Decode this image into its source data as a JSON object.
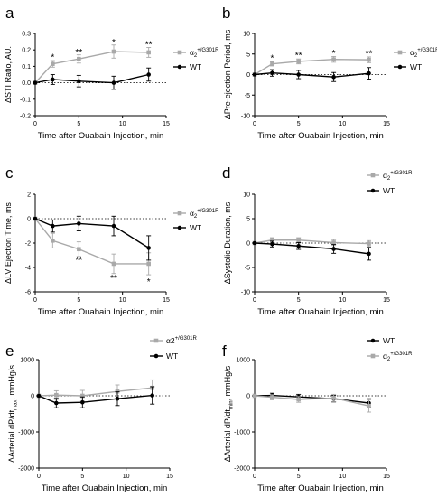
{
  "colors": {
    "wt": "#000000",
    "mut": "#a9a9a9",
    "axis": "#000000"
  },
  "chart_data": [
    {
      "type": "line",
      "panel_letter": "a",
      "ylabel": "ΔSTI Ratio, AU.",
      "xlabel": "Time after Ouabain Injection, min",
      "xlim": [
        0,
        15
      ],
      "ylim": [
        -0.2,
        0.3
      ],
      "x_ticks": [
        0,
        5,
        10,
        15
      ],
      "x_tick_labels": [
        "0",
        "5",
        "10",
        "15"
      ],
      "y_ticks": [
        -0.2,
        -0.1,
        0.0,
        0.1,
        0.2,
        0.3
      ],
      "y_tick_labels": [
        "-0.2",
        "-0.1",
        "0.0",
        "0.1",
        "0.2",
        "0.3"
      ],
      "zero_line": true,
      "legend_position": "right",
      "series": [
        {
          "name": "α2+/G301R",
          "legend_base": "α",
          "legend_sub": "2",
          "legend_sup": "+/G301R",
          "color": "mut",
          "marker": "square",
          "x": [
            0,
            2,
            5,
            9,
            13
          ],
          "y": [
            0,
            0.115,
            0.145,
            0.19,
            0.185
          ],
          "err": [
            0,
            0.02,
            0.025,
            0.04,
            0.03
          ]
        },
        {
          "name": "WT",
          "legend_base": "WT",
          "legend_sub": "",
          "legend_sup": "",
          "color": "wt",
          "marker": "circle",
          "x": [
            0,
            2,
            5,
            9,
            13
          ],
          "y": [
            0,
            0.02,
            0.01,
            0.0,
            0.05
          ],
          "err": [
            0,
            0.03,
            0.035,
            0.04,
            0.04
          ]
        }
      ],
      "annotations": [
        {
          "x": 2,
          "y": 0.155,
          "text": "*"
        },
        {
          "x": 5,
          "y": 0.185,
          "text": "**"
        },
        {
          "x": 9,
          "y": 0.245,
          "text": "*"
        },
        {
          "x": 13,
          "y": 0.23,
          "text": "**"
        }
      ]
    },
    {
      "type": "line",
      "panel_letter": "b",
      "ylabel": "ΔPre-ejection Period, ms",
      "xlabel": "Time after Ouabain Injection, min",
      "xlim": [
        0,
        15
      ],
      "ylim": [
        -10,
        10
      ],
      "x_ticks": [
        0,
        5,
        10,
        15
      ],
      "x_tick_labels": [
        "0",
        "5",
        "10",
        "15"
      ],
      "y_ticks": [
        -10,
        -5,
        0,
        5,
        10
      ],
      "y_tick_labels": [
        "-10",
        "-5",
        "0",
        "5",
        "10"
      ],
      "zero_line": true,
      "legend_position": "right",
      "series": [
        {
          "name": "α2+/G301R",
          "legend_base": "α",
          "legend_sub": "2",
          "legend_sup": "+/G301R",
          "color": "mut",
          "marker": "square",
          "x": [
            0,
            2,
            5,
            9,
            13
          ],
          "y": [
            0,
            2.6,
            3.2,
            3.7,
            3.6
          ],
          "err": [
            0,
            0.5,
            0.6,
            0.7,
            0.7
          ]
        },
        {
          "name": "WT",
          "legend_base": "WT",
          "legend_sub": "",
          "legend_sup": "",
          "color": "wt",
          "marker": "circle",
          "x": [
            0,
            2,
            5,
            9,
            13
          ],
          "y": [
            0,
            0.4,
            0.0,
            -0.6,
            0.3
          ],
          "err": [
            0,
            0.8,
            1.0,
            1.1,
            1.4
          ]
        }
      ],
      "annotations": [
        {
          "x": 2,
          "y": 4.0,
          "text": "*"
        },
        {
          "x": 5,
          "y": 4.6,
          "text": "**"
        },
        {
          "x": 9,
          "y": 5.2,
          "text": "*"
        },
        {
          "x": 13,
          "y": 5.1,
          "text": "**"
        }
      ]
    },
    {
      "type": "line",
      "panel_letter": "c",
      "ylabel": "ΔLV Ejection Time, ms",
      "xlabel": "Time after Ouabain Injection, min",
      "xlim": [
        0,
        15
      ],
      "ylim": [
        -6,
        2
      ],
      "x_ticks": [
        0,
        5,
        10,
        15
      ],
      "x_tick_labels": [
        "0",
        "5",
        "10",
        "15"
      ],
      "y_ticks": [
        -6,
        -4,
        -2,
        0,
        2
      ],
      "y_tick_labels": [
        "-6",
        "-4",
        "-2",
        "0",
        "2"
      ],
      "zero_line": true,
      "legend_position": "right",
      "series": [
        {
          "name": "α2+/G301R",
          "legend_base": "α",
          "legend_sub": "2",
          "legend_sup": "+/G301R",
          "color": "mut",
          "marker": "square",
          "x": [
            0,
            2,
            5,
            9,
            13
          ],
          "y": [
            0,
            -1.8,
            -2.5,
            -3.7,
            -3.7
          ],
          "err": [
            0,
            0.6,
            0.6,
            0.8,
            0.9
          ]
        },
        {
          "name": "WT",
          "legend_base": "WT",
          "legend_sub": "",
          "legend_sup": "",
          "color": "wt",
          "marker": "circle",
          "x": [
            0,
            2,
            5,
            9,
            13
          ],
          "y": [
            0,
            -0.6,
            -0.4,
            -0.6,
            -2.4
          ],
          "err": [
            0,
            0.5,
            0.6,
            0.8,
            1.0
          ]
        }
      ],
      "annotations": [
        {
          "x": 5,
          "y": -3.4,
          "text": "**"
        },
        {
          "x": 9,
          "y": -4.9,
          "text": "**"
        },
        {
          "x": 13,
          "y": -5.2,
          "text": "*"
        }
      ]
    },
    {
      "type": "line",
      "panel_letter": "d",
      "ylabel": "ΔSystolic Duration, ms",
      "xlabel": "Time after Ouabain Injection, min",
      "xlim": [
        0,
        15
      ],
      "ylim": [
        -10,
        10
      ],
      "x_ticks": [
        0,
        5,
        10,
        15
      ],
      "x_tick_labels": [
        "0",
        "5",
        "10",
        "15"
      ],
      "y_ticks": [
        -10,
        -5,
        0,
        5,
        10
      ],
      "y_tick_labels": [
        "-10",
        "-5",
        "0",
        "5",
        "10"
      ],
      "zero_line": true,
      "legend_position": "top-right",
      "series": [
        {
          "name": "α2+/G301R",
          "legend_base": "α",
          "legend_sub": "2",
          "legend_sup": "+/G301R",
          "color": "mut",
          "marker": "square",
          "x": [
            0,
            2,
            5,
            9,
            13
          ],
          "y": [
            0,
            0.6,
            0.6,
            0.1,
            -0.1
          ],
          "err": [
            0,
            0.5,
            0.5,
            0.6,
            0.6
          ]
        },
        {
          "name": "WT",
          "legend_base": "WT",
          "legend_sub": "",
          "legend_sup": "",
          "color": "wt",
          "marker": "circle",
          "x": [
            0,
            2,
            5,
            9,
            13
          ],
          "y": [
            0,
            -0.2,
            -0.6,
            -1.2,
            -2.2
          ],
          "err": [
            0,
            0.6,
            0.7,
            0.9,
            1.3
          ]
        }
      ],
      "annotations": []
    },
    {
      "type": "line",
      "panel_letter": "e",
      "ylabel": "ΔArterial dP/dt",
      "ylabel_sub": "max",
      "ylabel_tail": ", mmHg/s",
      "xlabel": "Time after Ouabain Injection, min",
      "xlim": [
        0,
        15
      ],
      "ylim": [
        -2000,
        1000
      ],
      "x_ticks": [
        0,
        5,
        10,
        15
      ],
      "x_tick_labels": [
        "0",
        "5",
        "10",
        "15"
      ],
      "y_ticks": [
        -2000,
        -1000,
        0,
        1000
      ],
      "y_tick_labels": [
        "-2000",
        "-1000",
        "0",
        "1000"
      ],
      "zero_line": true,
      "legend_position": "top-right",
      "series": [
        {
          "name": "α2+/G301R",
          "legend_base": "α2",
          "legend_sub": "",
          "legend_sup": "+/G301R",
          "color": "mut",
          "marker": "square",
          "x": [
            0,
            2,
            5,
            9,
            13
          ],
          "y": [
            0,
            20,
            0,
            120,
            220
          ],
          "err": [
            0,
            120,
            150,
            180,
            220
          ]
        },
        {
          "name": "WT",
          "legend_base": "WT",
          "legend_sub": "",
          "legend_sup": "",
          "color": "wt",
          "marker": "circle",
          "x": [
            0,
            2,
            5,
            9,
            13
          ],
          "y": [
            0,
            -200,
            -180,
            -80,
            10
          ],
          "err": [
            0,
            130,
            150,
            190,
            240
          ]
        }
      ],
      "annotations": []
    },
    {
      "type": "line",
      "panel_letter": "f",
      "ylabel": "ΔArterial dP/dt",
      "ylabel_sub": "min",
      "ylabel_tail": ", mmHg/s",
      "xlabel": "Time after Ouabain Injection, min",
      "xlim": [
        0,
        15
      ],
      "ylim": [
        -2000,
        1000
      ],
      "x_ticks": [
        0,
        5,
        10,
        15
      ],
      "x_tick_labels": [
        "0",
        "5",
        "10",
        "15"
      ],
      "y_ticks": [
        -2000,
        -1000,
        0,
        1000
      ],
      "y_tick_labels": [
        "-2000",
        "-1000",
        "0",
        "1000"
      ],
      "zero_line": true,
      "legend_position": "top-right",
      "series": [
        {
          "name": "WT",
          "legend_base": "WT",
          "legend_sub": "",
          "legend_sup": "",
          "color": "wt",
          "marker": "circle",
          "x": [
            0,
            2,
            5,
            9,
            13
          ],
          "y": [
            0,
            10,
            -30,
            -80,
            -200
          ],
          "err": [
            0,
            60,
            70,
            90,
            120
          ]
        },
        {
          "name": "α2+/G301R",
          "legend_base": "α",
          "legend_sub": "2",
          "legend_sup": "+/G301R",
          "color": "mut",
          "marker": "square",
          "x": [
            0,
            2,
            5,
            9,
            13
          ],
          "y": [
            0,
            -40,
            -100,
            -60,
            -280
          ],
          "err": [
            0,
            70,
            80,
            100,
            170
          ]
        }
      ],
      "annotations": []
    }
  ]
}
